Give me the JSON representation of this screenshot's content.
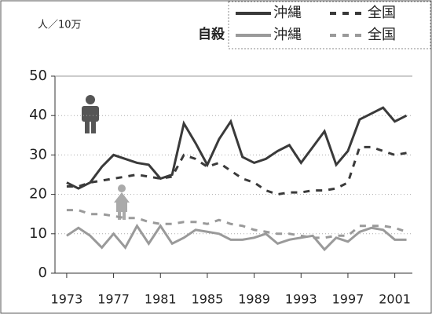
{
  "chart_data": {
    "type": "line",
    "title": "自殺",
    "y_label": "人／10万",
    "x": [
      1973,
      1974,
      1975,
      1976,
      1977,
      1978,
      1979,
      1980,
      1981,
      1982,
      1983,
      1984,
      1985,
      1986,
      1987,
      1988,
      1989,
      1990,
      1991,
      1992,
      1993,
      1994,
      1995,
      1996,
      1997,
      1998,
      1999,
      2000,
      2001,
      2002
    ],
    "xlim": [
      1972,
      2002.5
    ],
    "xticks": [
      1973,
      1977,
      1981,
      1985,
      1989,
      1993,
      1997,
      2001
    ],
    "ylim": [
      0,
      50
    ],
    "yticks": [
      0,
      10,
      20,
      30,
      40,
      50
    ],
    "grid": true,
    "series": [
      {
        "name": "沖縄",
        "color": "#3a3a3a",
        "dashed": false,
        "values": [
          23,
          21.5,
          23,
          27,
          30,
          29,
          28,
          27.5,
          24,
          25,
          38,
          33,
          27.5,
          34,
          38.5,
          29.5,
          28,
          29,
          31,
          32.5,
          28,
          32,
          36,
          27.5,
          31,
          39,
          40.5,
          42,
          38.5,
          40
        ]
      },
      {
        "name": "全国",
        "color": "#3a3a3a",
        "dashed": true,
        "values": [
          22,
          22,
          23,
          23.5,
          24,
          24.5,
          25,
          24.5,
          24,
          24.5,
          30,
          29,
          27,
          28,
          26,
          24,
          23,
          21,
          20,
          20.5,
          20.5,
          21,
          21,
          21.5,
          23,
          32,
          32,
          31,
          30,
          30.5
        ]
      },
      {
        "name": "沖縄",
        "color": "#9a9a9a",
        "dashed": false,
        "values": [
          9.5,
          11.5,
          9.5,
          6.5,
          10,
          6.5,
          12,
          7.5,
          12,
          7.5,
          9,
          11,
          10.5,
          10,
          8.5,
          8.5,
          9,
          10,
          7.5,
          8.5,
          9,
          9.5,
          6,
          9,
          8,
          10.5,
          11.5,
          11,
          8.5,
          8.5
        ]
      },
      {
        "name": "全国",
        "color": "#9a9a9a",
        "dashed": true,
        "values": [
          16,
          16,
          15,
          15,
          14.5,
          14,
          14,
          13,
          12.5,
          12.5,
          13,
          13,
          12.5,
          13.5,
          12.5,
          12,
          11,
          10.5,
          10,
          10,
          9.5,
          9,
          9,
          9.5,
          9.5,
          12,
          12,
          12,
          11.5,
          10.5
        ]
      }
    ]
  }
}
